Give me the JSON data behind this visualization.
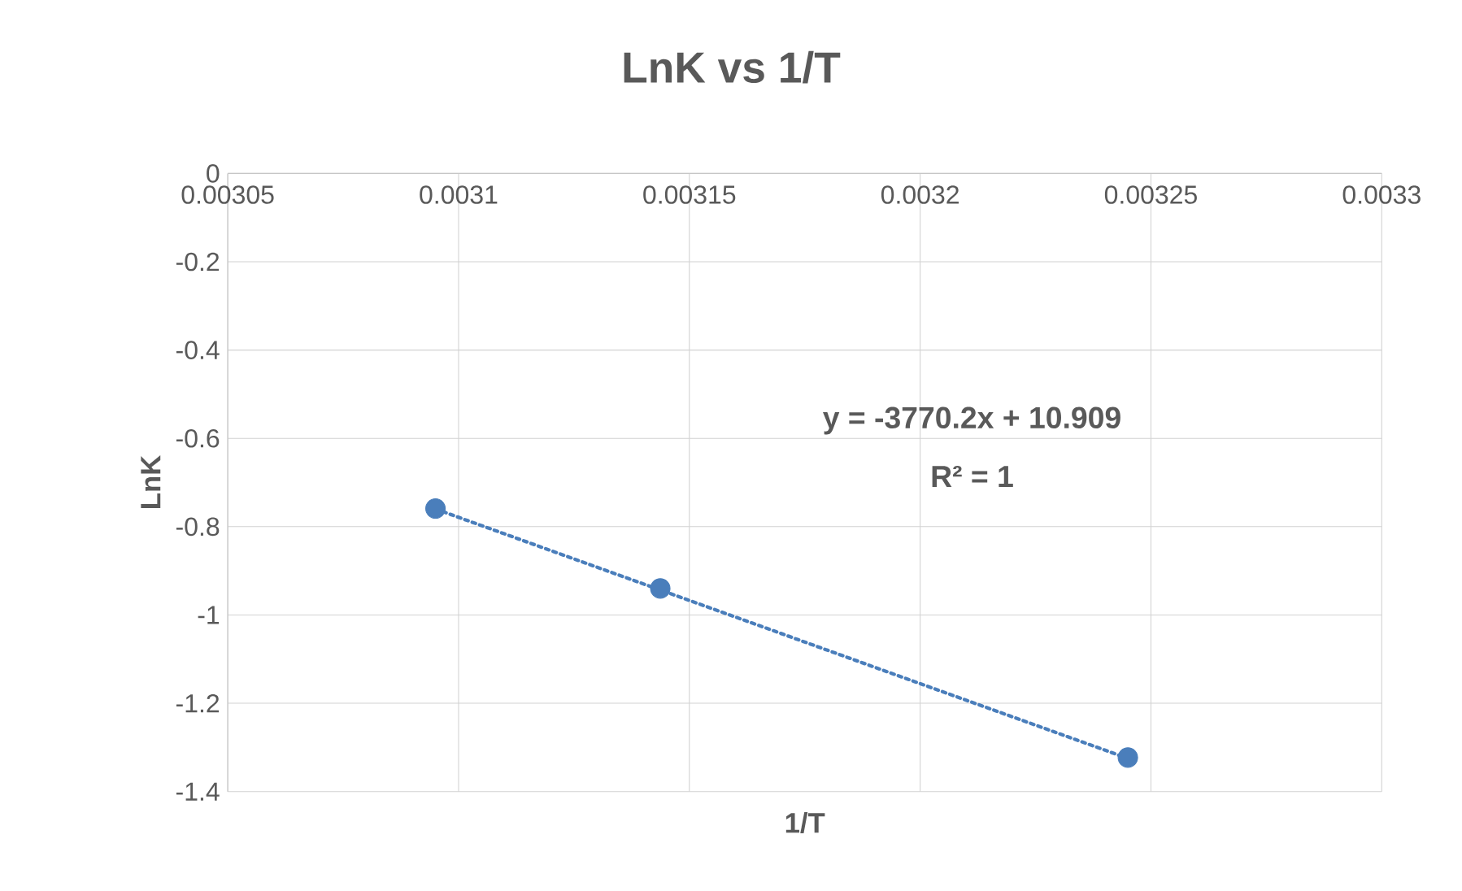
{
  "chart_data": {
    "type": "scatter",
    "title": "LnK vs 1/T",
    "xlabel": "1/T",
    "ylabel": "LnK",
    "xlim": [
      0.00305,
      0.0033
    ],
    "xticks": [
      0.00305,
      0.0031,
      0.00315,
      0.0032,
      0.00325,
      0.0033
    ],
    "ylim": [
      -1.4,
      0
    ],
    "yticks": [
      0,
      -0.2,
      -0.4,
      -0.6,
      -0.8,
      -1,
      -1.2,
      -1.4
    ],
    "grid": true,
    "series": [
      {
        "color": "#4a7ebb",
        "marker": "circle",
        "x": [
          0.003095,
          0.0031437,
          0.003245
        ],
        "values": [
          -0.759,
          -0.94,
          -1.323
        ]
      },
      {
        "type": "line",
        "color": "#4a7ebb",
        "marker": "none",
        "line_style": "dotted",
        "x": [
          0.003095,
          0.003245
        ],
        "values": [
          -0.76,
          -1.325
        ]
      }
    ],
    "annotations": [
      "y = -3770.2x + 10.909",
      "R² = 1"
    ]
  }
}
